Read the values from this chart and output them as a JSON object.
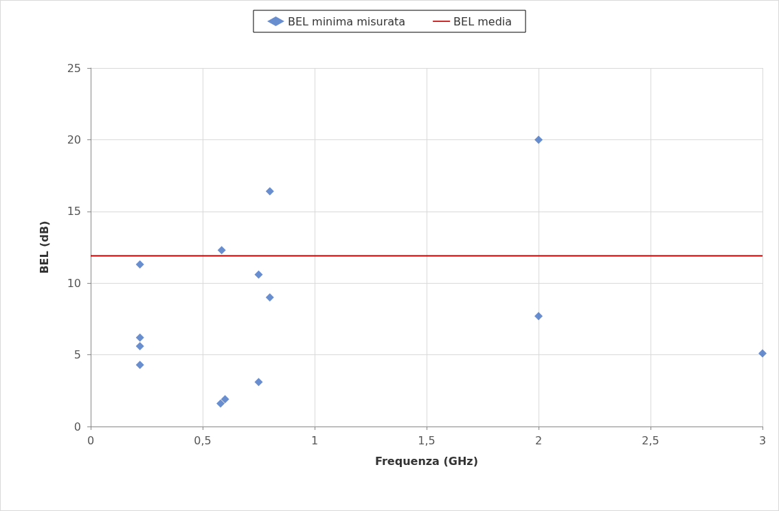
{
  "chart_data": {
    "type": "scatter",
    "xlabel": "Frequenza (GHz)",
    "ylabel": "BEL (dB)",
    "series": [
      {
        "name": "BEL minima misurata",
        "color": "#4472c4",
        "x": [
          0.22,
          0.22,
          0.22,
          0.22,
          0.58,
          0.6,
          0.585,
          0.75,
          0.75,
          0.8,
          0.8,
          2,
          2,
          3
        ],
        "values": [
          11.3,
          6.2,
          5.6,
          4.3,
          1.6,
          1.9,
          12.3,
          10.6,
          3.1,
          16.4,
          9.0,
          20,
          7.7,
          5.1
        ]
      }
    ],
    "ref_lines": [
      {
        "axis": "y",
        "value": 11.9,
        "label": "BEL media",
        "color": "#c00000",
        "line_style": "solid"
      }
    ],
    "xlim": [
      0,
      3
    ],
    "xticks": [
      {
        "value": 0,
        "label": "0"
      },
      {
        "value": 0.5,
        "label": "0,5"
      },
      {
        "value": 1,
        "label": "1"
      },
      {
        "value": 1.5,
        "label": "1,5"
      },
      {
        "value": 2,
        "label": "2"
      },
      {
        "value": 2.5,
        "label": "2,5"
      },
      {
        "value": 3,
        "label": "3"
      }
    ],
    "ylim": [
      0,
      25
    ],
    "yticks": [
      0,
      5,
      10,
      15,
      20,
      25
    ],
    "grid": true,
    "legend": "top",
    "marker": "diamond"
  }
}
